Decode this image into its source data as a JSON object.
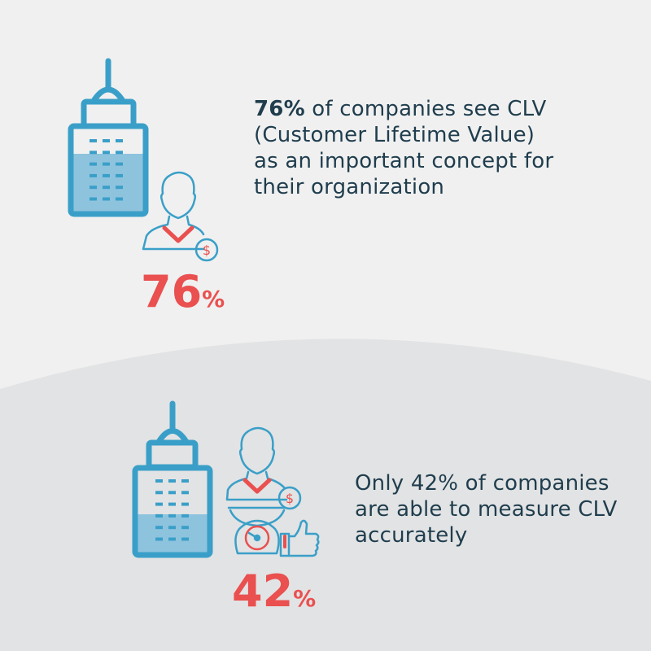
{
  "colors": {
    "accent_blue": "#3a9fc8",
    "accent_red": "#e9504f",
    "text": "#1f3d4d",
    "bg_top": "#f0f0f0",
    "bg_bottom": "#e2e3e4"
  },
  "stat1": {
    "value": 76,
    "big_number": "76",
    "percent_sign": "%",
    "bold_lead": "76%",
    "text": " of companies see CLV (Customer Lifetime Value) as an important concept for their organization",
    "icons": [
      "building-icon",
      "person-dollar-icon"
    ]
  },
  "stat2": {
    "value": 42,
    "big_number": "42",
    "percent_sign": "%",
    "text": "Only 42% of companies are able to measure CLV accurately",
    "icons": [
      "building-icon",
      "person-on-scale-icon",
      "thumbs-up-icon"
    ]
  },
  "icon_glyphs": {
    "dollar": "$"
  }
}
